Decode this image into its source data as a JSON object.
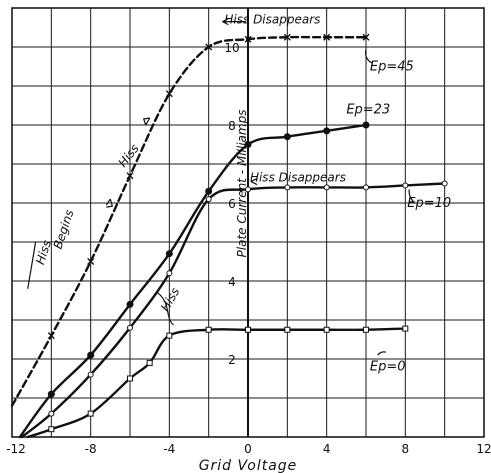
{
  "chart_data": {
    "type": "line",
    "xlabel": "Grid Voltage",
    "ylabel": "Plate Current - Milliamps",
    "xlim": [
      -12,
      12
    ],
    "ylim": [
      0,
      11
    ],
    "x_ticks": [
      "-12",
      "-8",
      "-4",
      "0",
      "4",
      "8",
      "12"
    ],
    "y_ticks": [
      "2",
      "4",
      "6",
      "8",
      "10"
    ],
    "grid": true,
    "series": [
      {
        "name": "Ep=45",
        "label": "Ep=45",
        "marker": "x",
        "x": [
          -12,
          -10,
          -8,
          -6,
          -4,
          -2,
          0,
          2,
          4,
          6
        ],
        "y": [
          0.8,
          2.6,
          4.5,
          6.7,
          8.8,
          10.0,
          10.2,
          10.25,
          10.25,
          10.25
        ]
      },
      {
        "name": "Ep=23",
        "label": "Ep=23",
        "marker": "dot",
        "x": [
          -11.6,
          -10,
          -8,
          -6,
          -4,
          -2,
          0,
          2,
          4,
          6
        ],
        "y": [
          0.0,
          1.1,
          2.1,
          3.4,
          4.7,
          6.3,
          7.5,
          7.7,
          7.85,
          8.0
        ]
      },
      {
        "name": "Ep=10",
        "label": "Ep=10",
        "marker": "triangle",
        "x": [
          -11.5,
          -10,
          -8,
          -6,
          -4,
          -2,
          0,
          2,
          4,
          6,
          8,
          10
        ],
        "y": [
          0.0,
          0.6,
          1.6,
          2.8,
          4.2,
          6.1,
          6.35,
          6.4,
          6.4,
          6.4,
          6.45,
          6.5
        ]
      },
      {
        "name": "Ep=0",
        "label": "Ep=0",
        "marker": "square",
        "x": [
          -11.2,
          -10,
          -8,
          -6,
          -5,
          -4,
          -2,
          0,
          2,
          4,
          6,
          8
        ],
        "y": [
          0.0,
          0.2,
          0.6,
          1.5,
          1.9,
          2.6,
          2.75,
          2.75,
          2.75,
          2.75,
          2.75,
          2.78
        ]
      }
    ],
    "annotations": {
      "hiss_disappears_top": "Hiss Disappears",
      "hiss_disappears_mid": "Hiss Disappears",
      "hiss_upper": "Hiss",
      "hiss_begins_1": "Hiss",
      "hiss_begins_2": "Begins",
      "hiss_lower": "Hiss"
    }
  }
}
